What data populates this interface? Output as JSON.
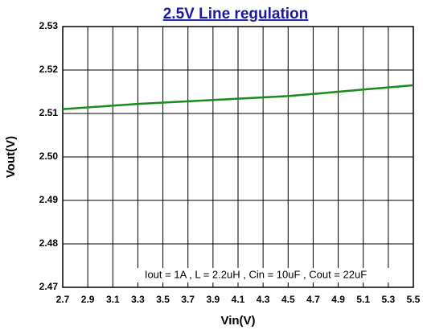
{
  "chart_data": {
    "type": "line",
    "title": "2.5V Line regulation",
    "x_label": "Vin(V)",
    "y_label": "Vout(V)",
    "annotation": "Iout = 1A , L = 2.2uH , Cin = 10uF , Cout = 22uF",
    "x": [
      2.7,
      2.9,
      3.1,
      3.3,
      3.5,
      3.7,
      3.9,
      4.1,
      4.3,
      4.5,
      4.7,
      4.9,
      5.1,
      5.3,
      5.5
    ],
    "series": [
      {
        "color": "#1a8a1a",
        "values": [
          2.511,
          2.5114,
          2.5118,
          2.5122,
          2.5125,
          2.5128,
          2.5131,
          2.5134,
          2.5137,
          2.514,
          2.5145,
          2.515,
          2.5155,
          2.516,
          2.5165
        ]
      }
    ],
    "xlim": [
      2.7,
      5.5
    ],
    "ylim": [
      2.47,
      2.53
    ],
    "xticks": [
      2.7,
      2.9,
      3.1,
      3.3,
      3.5,
      3.7,
      3.9,
      4.1,
      4.3,
      4.5,
      4.7,
      4.9,
      5.1,
      5.3,
      5.5
    ],
    "yticks": [
      2.47,
      2.48,
      2.49,
      {
        "value": 2.5,
        "label": "2.50"
      },
      2.51,
      2.52,
      2.53
    ],
    "grid": true
  }
}
